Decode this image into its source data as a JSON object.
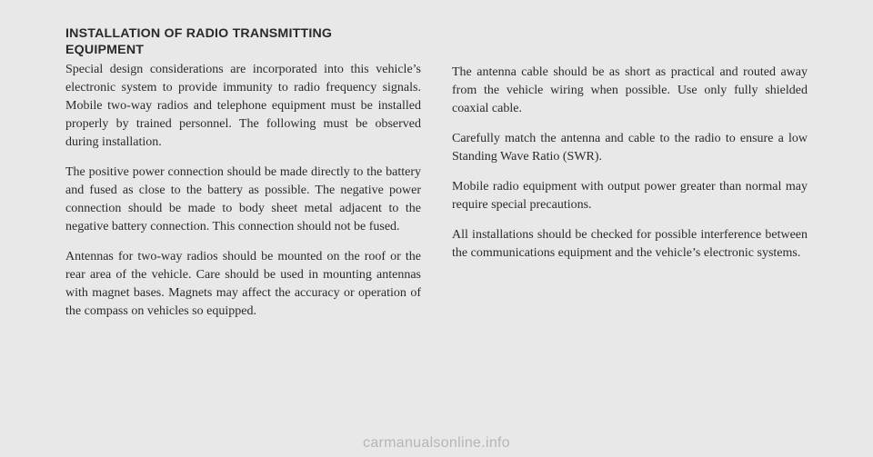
{
  "left": {
    "heading_line1": "INSTALLATION OF RADIO TRANSMITTING",
    "heading_line2": "EQUIPMENT",
    "p1": "Special design considerations are incorporated into this vehicle’s electronic system to provide immunity to radio frequency signals. Mobile two-way radios and telephone equipment must be installed properly by trained personnel. The following must be observed during installation.",
    "p2": "The positive power connection should be made directly to the battery and fused as close to the battery as possible. The negative power connection should be made to body sheet metal adjacent to the negative battery connection. This connection should not be fused.",
    "p3": "Antennas for two-way radios should be mounted on the roof or the rear area of the vehicle. Care should be used in mounting antennas with magnet bases. Magnets may affect the accuracy or operation of the compass on vehicles so equipped."
  },
  "right": {
    "p1": "The antenna cable should be as short as practical and routed away from the vehicle wiring when possible. Use only fully shielded coaxial cable.",
    "p2": "Carefully match the antenna and cable to the radio to ensure a low Standing Wave Ratio (SWR).",
    "p3": "Mobile radio equipment with output power greater than normal may require special precautions.",
    "p4": "All installations should be checked for possible interference between the communications equipment and the vehicle’s electronic systems."
  },
  "watermark": "carmanualsonline.info"
}
